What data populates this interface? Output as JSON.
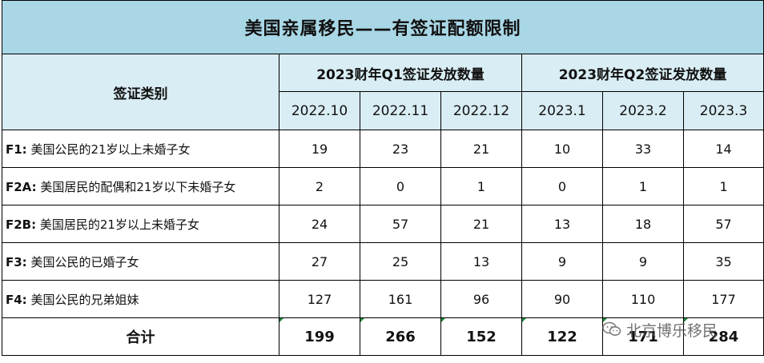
{
  "title": "美国亲属移民——有签证配额限制",
  "header": {
    "category_label": "签证类别",
    "q1_label": "2023财年Q1签证发放数量",
    "q2_label": "2023财年Q2签证发放数量",
    "months": [
      "2022.10",
      "2022.11",
      "2022.12",
      "2023.1",
      "2023.2",
      "2023.3"
    ]
  },
  "rows": [
    {
      "code": "F1:",
      "desc": " 美国公民的21岁以上未婚子女",
      "values": [
        "19",
        "23",
        "21",
        "10",
        "33",
        "14"
      ]
    },
    {
      "code": "F2A:",
      "desc": " 美国居民的配偶和21岁以下未婚子女",
      "values": [
        "2",
        "0",
        "1",
        "0",
        "1",
        "1"
      ]
    },
    {
      "code": "F2B:",
      "desc": " 美国居民的21岁以上未婚子女",
      "values": [
        "24",
        "57",
        "21",
        "13",
        "18",
        "57"
      ]
    },
    {
      "code": "F3:",
      "desc": " 美国公民的已婚子女",
      "values": [
        "27",
        "25",
        "13",
        "9",
        "9",
        "35"
      ]
    },
    {
      "code": "F4:",
      "desc": " 美国公民的兄弟姐妹",
      "values": [
        "127",
        "161",
        "96",
        "90",
        "110",
        "177"
      ]
    }
  ],
  "total": {
    "label": "合计",
    "values": [
      "199",
      "266",
      "152",
      "122",
      "171",
      "284"
    ]
  },
  "watermark": {
    "text": "北京博乐移民",
    "icon": "wechat-icon"
  },
  "colors": {
    "title_bg": "#a9d7e6",
    "header_bg": "#d9edf4",
    "marker": "#1f8a3a"
  }
}
